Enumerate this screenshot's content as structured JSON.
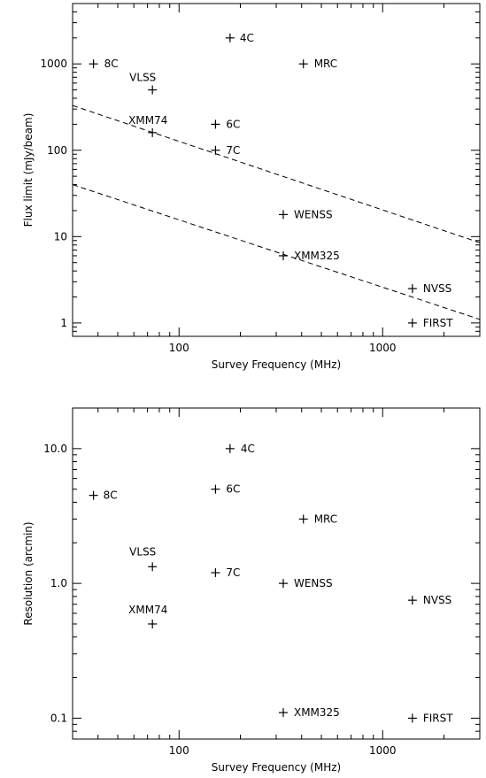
{
  "chart_data": [
    {
      "type": "scatter",
      "xscale": "log",
      "yscale": "log",
      "xlabel": "Survey Frequency (MHz)",
      "ylabel": "Flux limit (mJy/beam)",
      "xlim": [
        30,
        3000
      ],
      "ylim": [
        0.7,
        5000
      ],
      "x_ticks": [
        {
          "value": 100,
          "label": "100"
        },
        {
          "value": 1000,
          "label": "1000"
        }
      ],
      "y_ticks": [
        {
          "value": 1,
          "label": "1"
        },
        {
          "value": 10,
          "label": "10"
        },
        {
          "value": 100,
          "label": "100"
        },
        {
          "value": 1000,
          "label": "1000"
        }
      ],
      "grid": false,
      "points": [
        {
          "label": "8C",
          "x": 38,
          "y": 1000
        },
        {
          "label": "4C",
          "x": 178,
          "y": 2000
        },
        {
          "label": "MRC",
          "x": 408,
          "y": 1000
        },
        {
          "label": "VLSS",
          "x": 74,
          "y": 500
        },
        {
          "label": "XMM74",
          "x": 74,
          "y": 160
        },
        {
          "label": "6C",
          "x": 151,
          "y": 200
        },
        {
          "label": "7C",
          "x": 151,
          "y": 100
        },
        {
          "label": "WENSS",
          "x": 325,
          "y": 18
        },
        {
          "label": "XMM325",
          "x": 325,
          "y": 6
        },
        {
          "label": "NVSS",
          "x": 1400,
          "y": 2.5
        },
        {
          "label": "FIRST",
          "x": 1400,
          "y": 1
        }
      ],
      "lines": [
        {
          "style": "dashed",
          "x": [
            30,
            3000
          ],
          "y": [
            330,
            8.5
          ]
        },
        {
          "style": "dashed",
          "x": [
            30,
            3000
          ],
          "y": [
            40,
            1.1
          ]
        }
      ]
    },
    {
      "type": "scatter",
      "xscale": "log",
      "yscale": "log",
      "xlabel": "Survey Frequency (MHz)",
      "ylabel": "Resolution (arcmin)",
      "xlim": [
        30,
        3000
      ],
      "ylim": [
        0.07,
        20
      ],
      "x_ticks": [
        {
          "value": 100,
          "label": "100"
        },
        {
          "value": 1000,
          "label": "1000"
        }
      ],
      "y_ticks": [
        {
          "value": 0.1,
          "label": "0.1"
        },
        {
          "value": 1,
          "label": "1.0"
        },
        {
          "value": 10,
          "label": "10.0"
        }
      ],
      "grid": false,
      "points": [
        {
          "label": "4C",
          "x": 178,
          "y": 10
        },
        {
          "label": "8C",
          "x": 38,
          "y": 4.5
        },
        {
          "label": "6C",
          "x": 151,
          "y": 5
        },
        {
          "label": "MRC",
          "x": 408,
          "y": 3
        },
        {
          "label": "VLSS",
          "x": 74,
          "y": 1.33
        },
        {
          "label": "7C",
          "x": 151,
          "y": 1.2
        },
        {
          "label": "WENSS",
          "x": 325,
          "y": 1
        },
        {
          "label": "NVSS",
          "x": 1400,
          "y": 0.75
        },
        {
          "label": "XMM74",
          "x": 74,
          "y": 0.5
        },
        {
          "label": "XMM325",
          "x": 325,
          "y": 0.11
        },
        {
          "label": "FIRST",
          "x": 1400,
          "y": 0.1
        }
      ],
      "lines": []
    }
  ]
}
